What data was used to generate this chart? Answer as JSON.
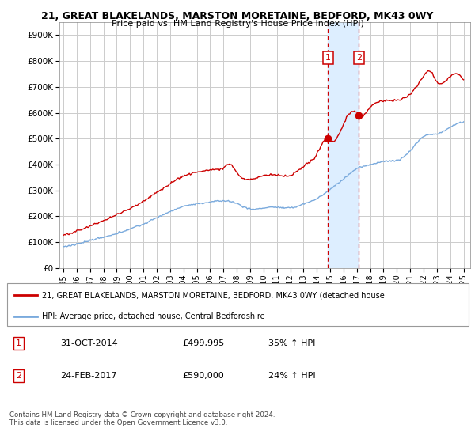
{
  "title": "21, GREAT BLAKELANDS, MARSTON MORETAINE, BEDFORD, MK43 0WY",
  "subtitle": "Price paid vs. HM Land Registry's House Price Index (HPI)",
  "ylim": [
    0,
    950000
  ],
  "xlim_start": 1994.7,
  "xlim_end": 2025.5,
  "yticks": [
    0,
    100000,
    200000,
    300000,
    400000,
    500000,
    600000,
    700000,
    800000,
    900000
  ],
  "ytick_labels": [
    "£0",
    "£100K",
    "£200K",
    "£300K",
    "£400K",
    "£500K",
    "£600K",
    "£700K",
    "£800K",
    "£900K"
  ],
  "xtick_years": [
    1995,
    1996,
    1997,
    1998,
    1999,
    2000,
    2001,
    2002,
    2003,
    2004,
    2005,
    2006,
    2007,
    2008,
    2009,
    2010,
    2011,
    2012,
    2013,
    2014,
    2015,
    2016,
    2017,
    2018,
    2019,
    2020,
    2021,
    2022,
    2023,
    2024,
    2025
  ],
  "sale1_x": 2014.833,
  "sale1_y": 499995,
  "sale2_x": 2017.15,
  "sale2_y": 590000,
  "sale1_label": "31-OCT-2014",
  "sale1_price": "£499,995",
  "sale1_hpi": "35% ↑ HPI",
  "sale2_label": "24-FEB-2017",
  "sale2_price": "£590,000",
  "sale2_hpi": "24% ↑ HPI",
  "legend_line1": "21, GREAT BLAKELANDS, MARSTON MORETAINE, BEDFORD, MK43 0WY (detached house",
  "legend_line2": "HPI: Average price, detached house, Central Bedfordshire",
  "footnote": "Contains HM Land Registry data © Crown copyright and database right 2024.\nThis data is licensed under the Open Government Licence v3.0.",
  "red_color": "#cc0000",
  "blue_color": "#7aaadd",
  "shade_color": "#ddeeff",
  "background_color": "#ffffff",
  "grid_color": "#cccccc"
}
